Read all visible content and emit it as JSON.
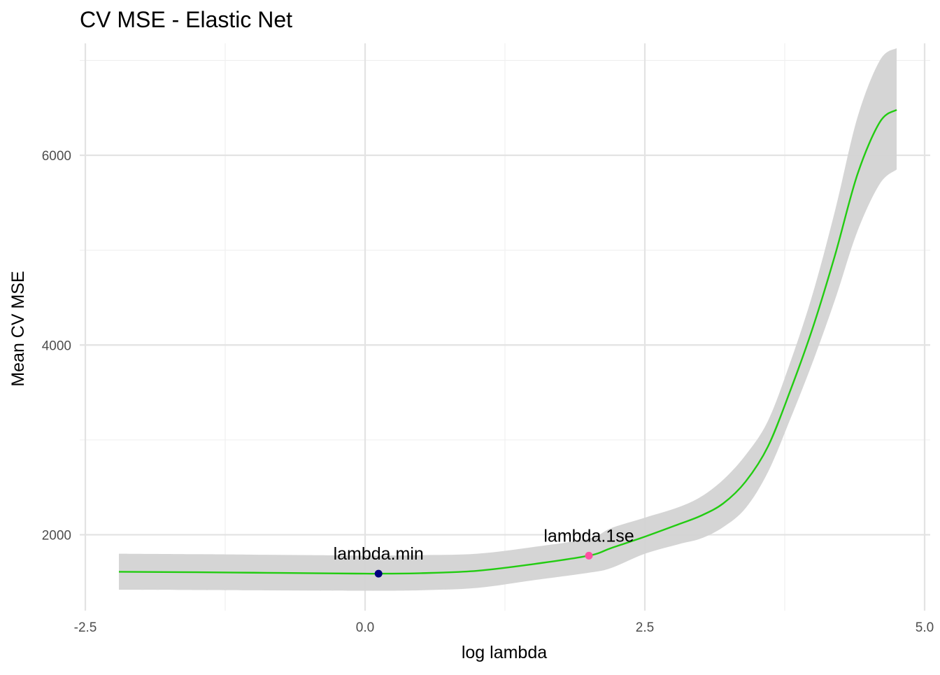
{
  "chart_data": {
    "type": "line",
    "title": "CV MSE - Elastic Net",
    "xlabel": "log lambda",
    "ylabel": "Mean CV MSE",
    "xlim": [
      -2.5,
      5.05
    ],
    "ylim": [
      1200,
      7180
    ],
    "x_ticks": [
      {
        "value": -2.5,
        "label": "-2.5"
      },
      {
        "value": 0,
        "label": "0.0"
      },
      {
        "value": 2.5,
        "label": "2.5"
      },
      {
        "value": 5,
        "label": "5.0"
      }
    ],
    "x_minor_ticks": [
      -1.25,
      1.25,
      3.75
    ],
    "y_ticks": [
      {
        "value": 2000,
        "label": "2000"
      },
      {
        "value": 4000,
        "label": "4000"
      },
      {
        "value": 6000,
        "label": "6000"
      }
    ],
    "y_minor_ticks": [
      3000,
      5000,
      7000
    ],
    "grid": true,
    "legend": "none",
    "colors": {
      "line": "#22cc11",
      "band": "#d3d3d3",
      "lambda_min_point": "#000080",
      "lambda_1se_point": "#ff4fa3"
    },
    "series": [
      {
        "x": [
          -2.2,
          -1.5,
          -1.0,
          -0.5,
          0.0,
          0.12,
          0.5,
          1.0,
          1.5,
          2.0,
          2.2,
          2.5,
          2.8,
          3.0,
          3.2,
          3.4,
          3.6,
          3.8,
          4.0,
          4.2,
          4.4,
          4.6,
          4.75
        ],
        "y": [
          1610,
          1605,
          1600,
          1595,
          1590,
          1590,
          1595,
          1620,
          1690,
          1780,
          1860,
          1980,
          2110,
          2200,
          2330,
          2560,
          2930,
          3520,
          4180,
          4950,
          5800,
          6350,
          6480
        ],
        "lower": [
          1420,
          1418,
          1415,
          1412,
          1410,
          1410,
          1415,
          1440,
          1520,
          1600,
          1650,
          1800,
          1900,
          1960,
          2080,
          2280,
          2660,
          3220,
          3820,
          4480,
          5200,
          5700,
          5850
        ],
        "upper": [
          1800,
          1795,
          1790,
          1785,
          1780,
          1780,
          1785,
          1800,
          1870,
          1960,
          2070,
          2180,
          2290,
          2400,
          2580,
          2840,
          3200,
          3820,
          4540,
          5420,
          6400,
          7000,
          7130
        ]
      }
    ],
    "points": [
      {
        "label": "lambda.min",
        "x": 0.12,
        "y": 1590
      },
      {
        "label": "lambda.1se",
        "x": 2.0,
        "y": 1780
      }
    ]
  }
}
